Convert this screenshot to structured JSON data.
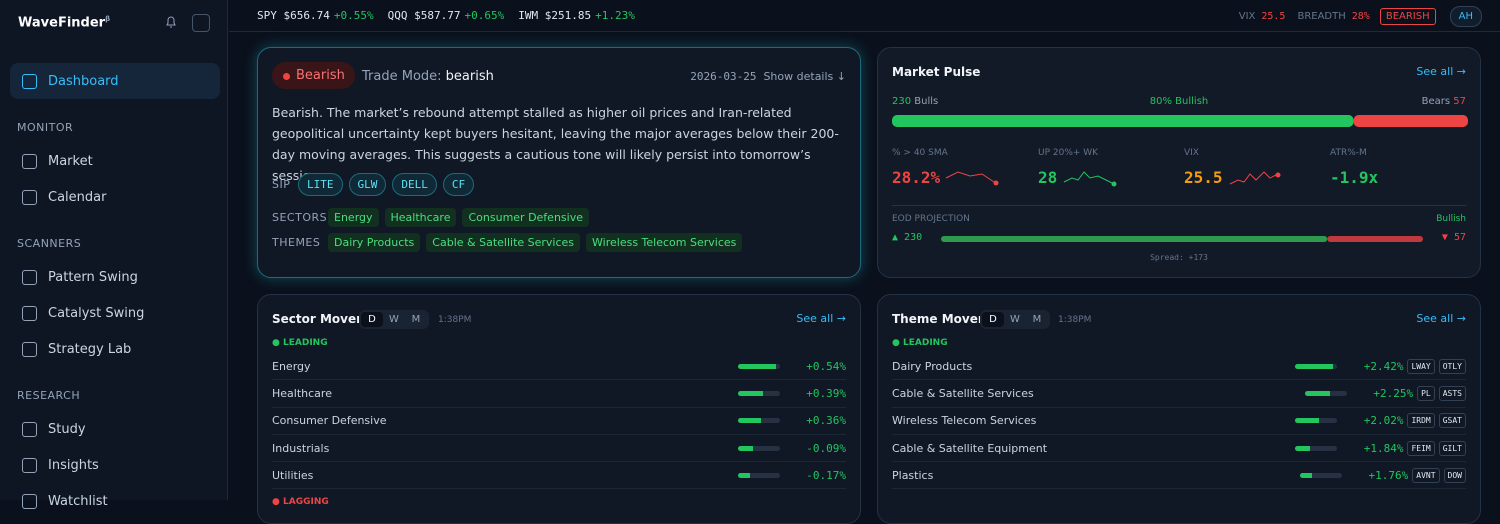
{
  "sidebar": {
    "brand": "WaveFinder",
    "brand_sup": "β",
    "active": "Dashboard",
    "sections": [
      {
        "title": "MONITOR",
        "items": [
          "Market",
          "Calendar"
        ]
      },
      {
        "title": "SCANNERS",
        "items": [
          "Pattern Swing",
          "Catalyst Swing",
          "Strategy Lab"
        ]
      },
      {
        "title": "RESEARCH",
        "items": [
          "Study",
          "Insights",
          "Watchlist"
        ]
      }
    ]
  },
  "ticker": [
    {
      "symbol": "SPY",
      "price": "$656.74",
      "change": "+0.55%"
    },
    {
      "symbol": "QQQ",
      "price": "$587.77",
      "change": "+0.65%"
    },
    {
      "symbol": "IWM",
      "price": "$251.85",
      "change": "+1.23%"
    }
  ],
  "status": {
    "vix_label": "VIX",
    "vix": "25.5",
    "breadth_label": "BREADTH",
    "breadth": "28%",
    "regime": "BEARISH",
    "session": "AH"
  },
  "summary": {
    "badge": "Bearish",
    "mode_label": "Trade Mode:",
    "mode": "bearish",
    "date": "2026-03-25",
    "details": "Show details ↓",
    "text": "Bearish. The market’s rebound attempt stalled as higher oil prices and Iran-related geopolitical uncertainty kept buyers hesitant, leaving the major averages below their 200-day moving averages. This suggests a cautious tone will likely persist into tomorrow’s session.",
    "sip_label": "SIP",
    "sip": [
      "LITE",
      "GLW",
      "DELL",
      "CF"
    ],
    "sectors_label": "SECTORS",
    "sectors": [
      "Energy",
      "Healthcare",
      "Consumer Defensive"
    ],
    "themes_label": "THEMES",
    "themes": [
      "Dairy Products",
      "Cable & Satellite Services",
      "Wireless Telecom Services"
    ]
  },
  "pulse": {
    "title": "Market Pulse",
    "see_all": "See all →",
    "bulls": 230,
    "bulls_label": "Bulls",
    "bullish": "80% Bullish",
    "bears_label": "Bears",
    "bears": 57,
    "metrics": [
      {
        "label": "% > 40 SMA",
        "value": "28.2%"
      },
      {
        "label": "UP 20%+ WK",
        "value": "28"
      },
      {
        "label": "VIX",
        "value": "25.5"
      },
      {
        "label": "ATR%-M",
        "value": "-1.9x"
      }
    ],
    "eod": {
      "label": "EOD PROJECTION",
      "signal": "Bullish",
      "bulls": 230,
      "bears": 57,
      "spread": "Spread: +173"
    }
  },
  "sector_movers": {
    "title": "Sector Movers",
    "periods": [
      "D",
      "W",
      "M"
    ],
    "time": "1:38PM",
    "see_all": "See all →",
    "leading": "LEADING",
    "rows": [
      {
        "name": "Energy",
        "change": "+0.54%"
      },
      {
        "name": "Healthcare",
        "change": "+0.39%"
      },
      {
        "name": "Consumer Defensive",
        "change": "+0.36%"
      },
      {
        "name": "Industrials",
        "change": "-0.09%"
      },
      {
        "name": "Utilities",
        "change": "-0.17%"
      }
    ],
    "lagging": "LAGGING"
  },
  "theme_movers": {
    "title": "Theme Movers",
    "periods": [
      "D",
      "W",
      "M"
    ],
    "time": "1:38PM",
    "see_all": "See all →",
    "leading": "LEADING",
    "rows": [
      {
        "name": "Dairy Products",
        "change": "+2.42%",
        "tickers": [
          "LWAY",
          "OTLY"
        ]
      },
      {
        "name": "Cable & Satellite Services",
        "change": "+2.25%",
        "tickers": [
          "PL",
          "ASTS"
        ]
      },
      {
        "name": "Wireless Telecom Services",
        "change": "+2.02%",
        "tickers": [
          "IRDM",
          "GSAT"
        ]
      },
      {
        "name": "Cable & Satellite Equipment",
        "change": "+1.84%",
        "tickers": [
          "FEIM",
          "GILT"
        ]
      },
      {
        "name": "Plastics",
        "change": "+1.76%",
        "tickers": [
          "AVNT",
          "DOW"
        ]
      }
    ]
  }
}
